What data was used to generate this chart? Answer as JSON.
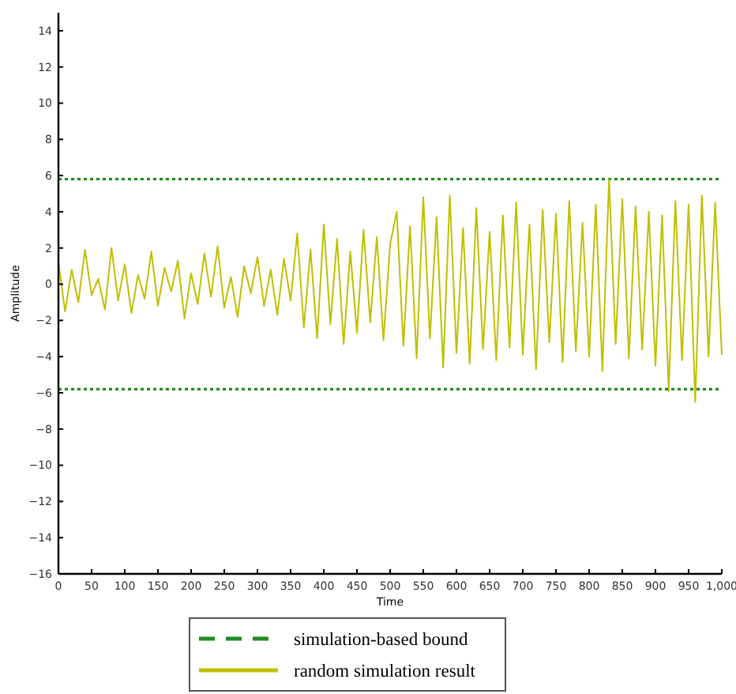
{
  "chart_data": {
    "type": "line",
    "xlabel": "Time",
    "ylabel": "Amplitude",
    "x": [
      0,
      10,
      20,
      30,
      40,
      50,
      60,
      70,
      80,
      90,
      100,
      110,
      120,
      130,
      140,
      150,
      160,
      170,
      180,
      190,
      200,
      210,
      220,
      230,
      240,
      250,
      260,
      270,
      280,
      290,
      300,
      310,
      320,
      330,
      340,
      350,
      360,
      370,
      380,
      390,
      400,
      410,
      420,
      430,
      440,
      450,
      460,
      470,
      480,
      490,
      500,
      510,
      520,
      530,
      540,
      550,
      560,
      570,
      580,
      590,
      600,
      610,
      620,
      630,
      640,
      650,
      660,
      670,
      680,
      690,
      700,
      710,
      720,
      730,
      740,
      750,
      760,
      770,
      780,
      790,
      800,
      810,
      820,
      830,
      840,
      850,
      860,
      870,
      880,
      890,
      900,
      910,
      920,
      930,
      940,
      950,
      960,
      970,
      980,
      990,
      1000
    ],
    "series": [
      {
        "name": "simulation-based bound",
        "color": "#228b22",
        "line_style": "dotted",
        "x": [
          0,
          1000
        ],
        "values": [
          5.8,
          5.8
        ]
      },
      {
        "name": "random simulation result",
        "color": "#c0bf00",
        "line_style": "solid",
        "values": [
          1.2,
          -1.5,
          0.8,
          -1.0,
          1.9,
          -0.6,
          0.3,
          -1.4,
          2.0,
          -0.9,
          1.1,
          -1.6,
          0.5,
          -0.8,
          1.8,
          -1.2,
          0.9,
          -0.4,
          1.3,
          -1.9,
          0.6,
          -1.1,
          1.7,
          -0.7,
          2.1,
          -1.3,
          0.4,
          -1.8,
          1.0,
          -0.5,
          1.5,
          -1.2,
          0.8,
          -1.7,
          1.4,
          -0.9,
          2.8,
          -2.4,
          1.9,
          -3.0,
          3.3,
          -2.2,
          2.5,
          -3.3,
          1.8,
          -2.7,
          3.0,
          -2.1,
          2.6,
          -3.1,
          2.2,
          4.0,
          -3.4,
          3.2,
          -4.1,
          4.8,
          -3.0,
          3.7,
          -4.6,
          4.9,
          -3.8,
          3.1,
          -4.4,
          4.2,
          -3.6,
          2.9,
          -4.2,
          3.8,
          -3.5,
          4.5,
          -3.9,
          3.3,
          -4.7,
          4.1,
          -3.2,
          3.9,
          -4.3,
          4.6,
          -3.7,
          3.4,
          -4.0,
          4.4,
          -4.8,
          5.8,
          -3.3,
          4.7,
          -4.1,
          4.3,
          -3.6,
          4.0,
          -4.5,
          3.8,
          -5.9,
          4.6,
          -4.2,
          4.4,
          -6.5,
          4.9,
          -4.0,
          4.5,
          -3.9
        ]
      }
    ],
    "xlim": [
      0,
      1000
    ],
    "xticks": [
      0,
      50,
      100,
      150,
      200,
      250,
      300,
      350,
      400,
      450,
      500,
      550,
      600,
      650,
      700,
      750,
      800,
      850,
      900,
      950,
      {
        "value": 1000,
        "label": "1,000"
      }
    ],
    "ylim": [
      -16,
      15
    ],
    "yticks": [
      {
        "value": -16,
        "label": "−16"
      },
      {
        "value": -14,
        "label": "−14"
      },
      {
        "value": -12,
        "label": "−12"
      },
      {
        "value": -10,
        "label": "−10"
      },
      {
        "value": -8,
        "label": "−8"
      },
      {
        "value": -6,
        "label": "−6"
      },
      {
        "value": -4,
        "label": "−4"
      },
      {
        "value": -2,
        "label": "−2"
      },
      0,
      2,
      4,
      6,
      8,
      10,
      12,
      14
    ],
    "ref_lines": [
      {
        "axis": "y",
        "value": -5.8,
        "color": "#228b22",
        "line_style": "dotted"
      }
    ],
    "grid": false,
    "legend": "bottom"
  }
}
